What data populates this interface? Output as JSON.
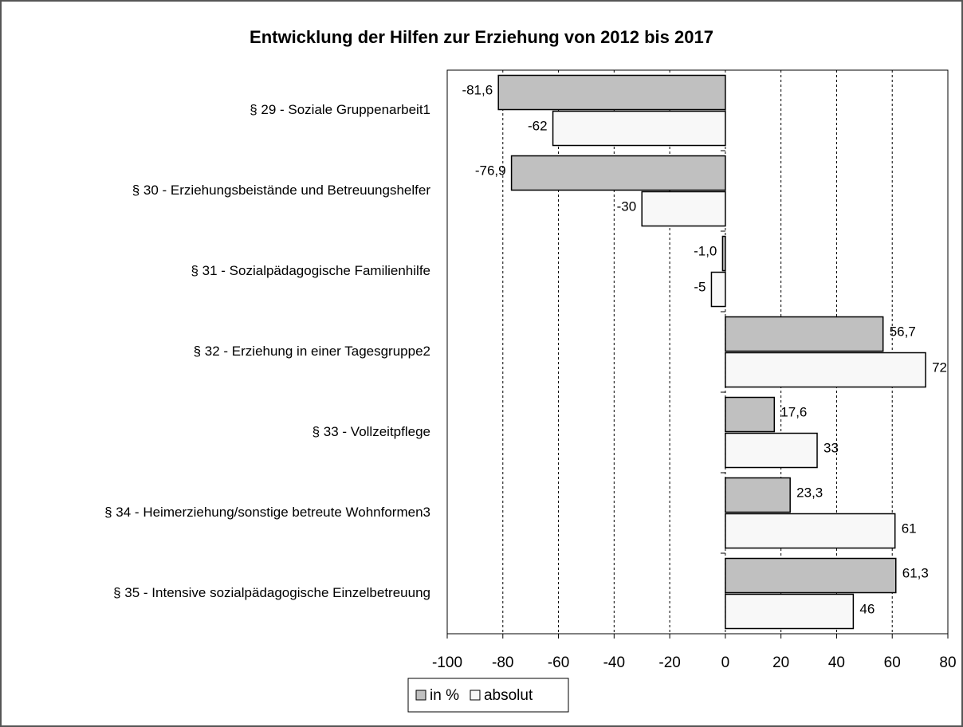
{
  "chart_data": {
    "type": "barh",
    "title": "Entwicklung der Hilfen zur Erziehung von 2012 bis 2017",
    "categories": [
      "§ 29 - Soziale Gruppenarbeit1",
      "§ 30 - Erziehungsbeistände und Betreuungshelfer",
      "§ 31 - Sozialpädagogische Familienhilfe",
      "§ 32 - Erziehung in einer Tagesgruppe2",
      "§ 33 - Vollzeitpflege",
      "§ 34 - Heimerziehung/sonstige betreute Wohnformen3",
      "§ 35 - Intensive sozialpädagogische Einzelbetreuung"
    ],
    "series": [
      {
        "name": "in %",
        "color": "#c0c0c0",
        "values": [
          -81.6,
          -76.9,
          -1.0,
          56.7,
          17.6,
          23.3,
          61.3
        ],
        "value_labels": [
          "-81,6",
          "-76,9",
          "-1,0",
          "56,7",
          "17,6",
          "23,3",
          "61,3"
        ]
      },
      {
        "name": "absolut",
        "color": "#f8f8f8",
        "values": [
          -62,
          -30,
          -5,
          72,
          33,
          61,
          46
        ]
      }
    ],
    "xlim": [
      -100,
      80
    ],
    "xticks": [
      -100,
      -80,
      -60,
      -40,
      -20,
      0,
      20,
      40,
      60,
      80
    ],
    "grid": true
  }
}
